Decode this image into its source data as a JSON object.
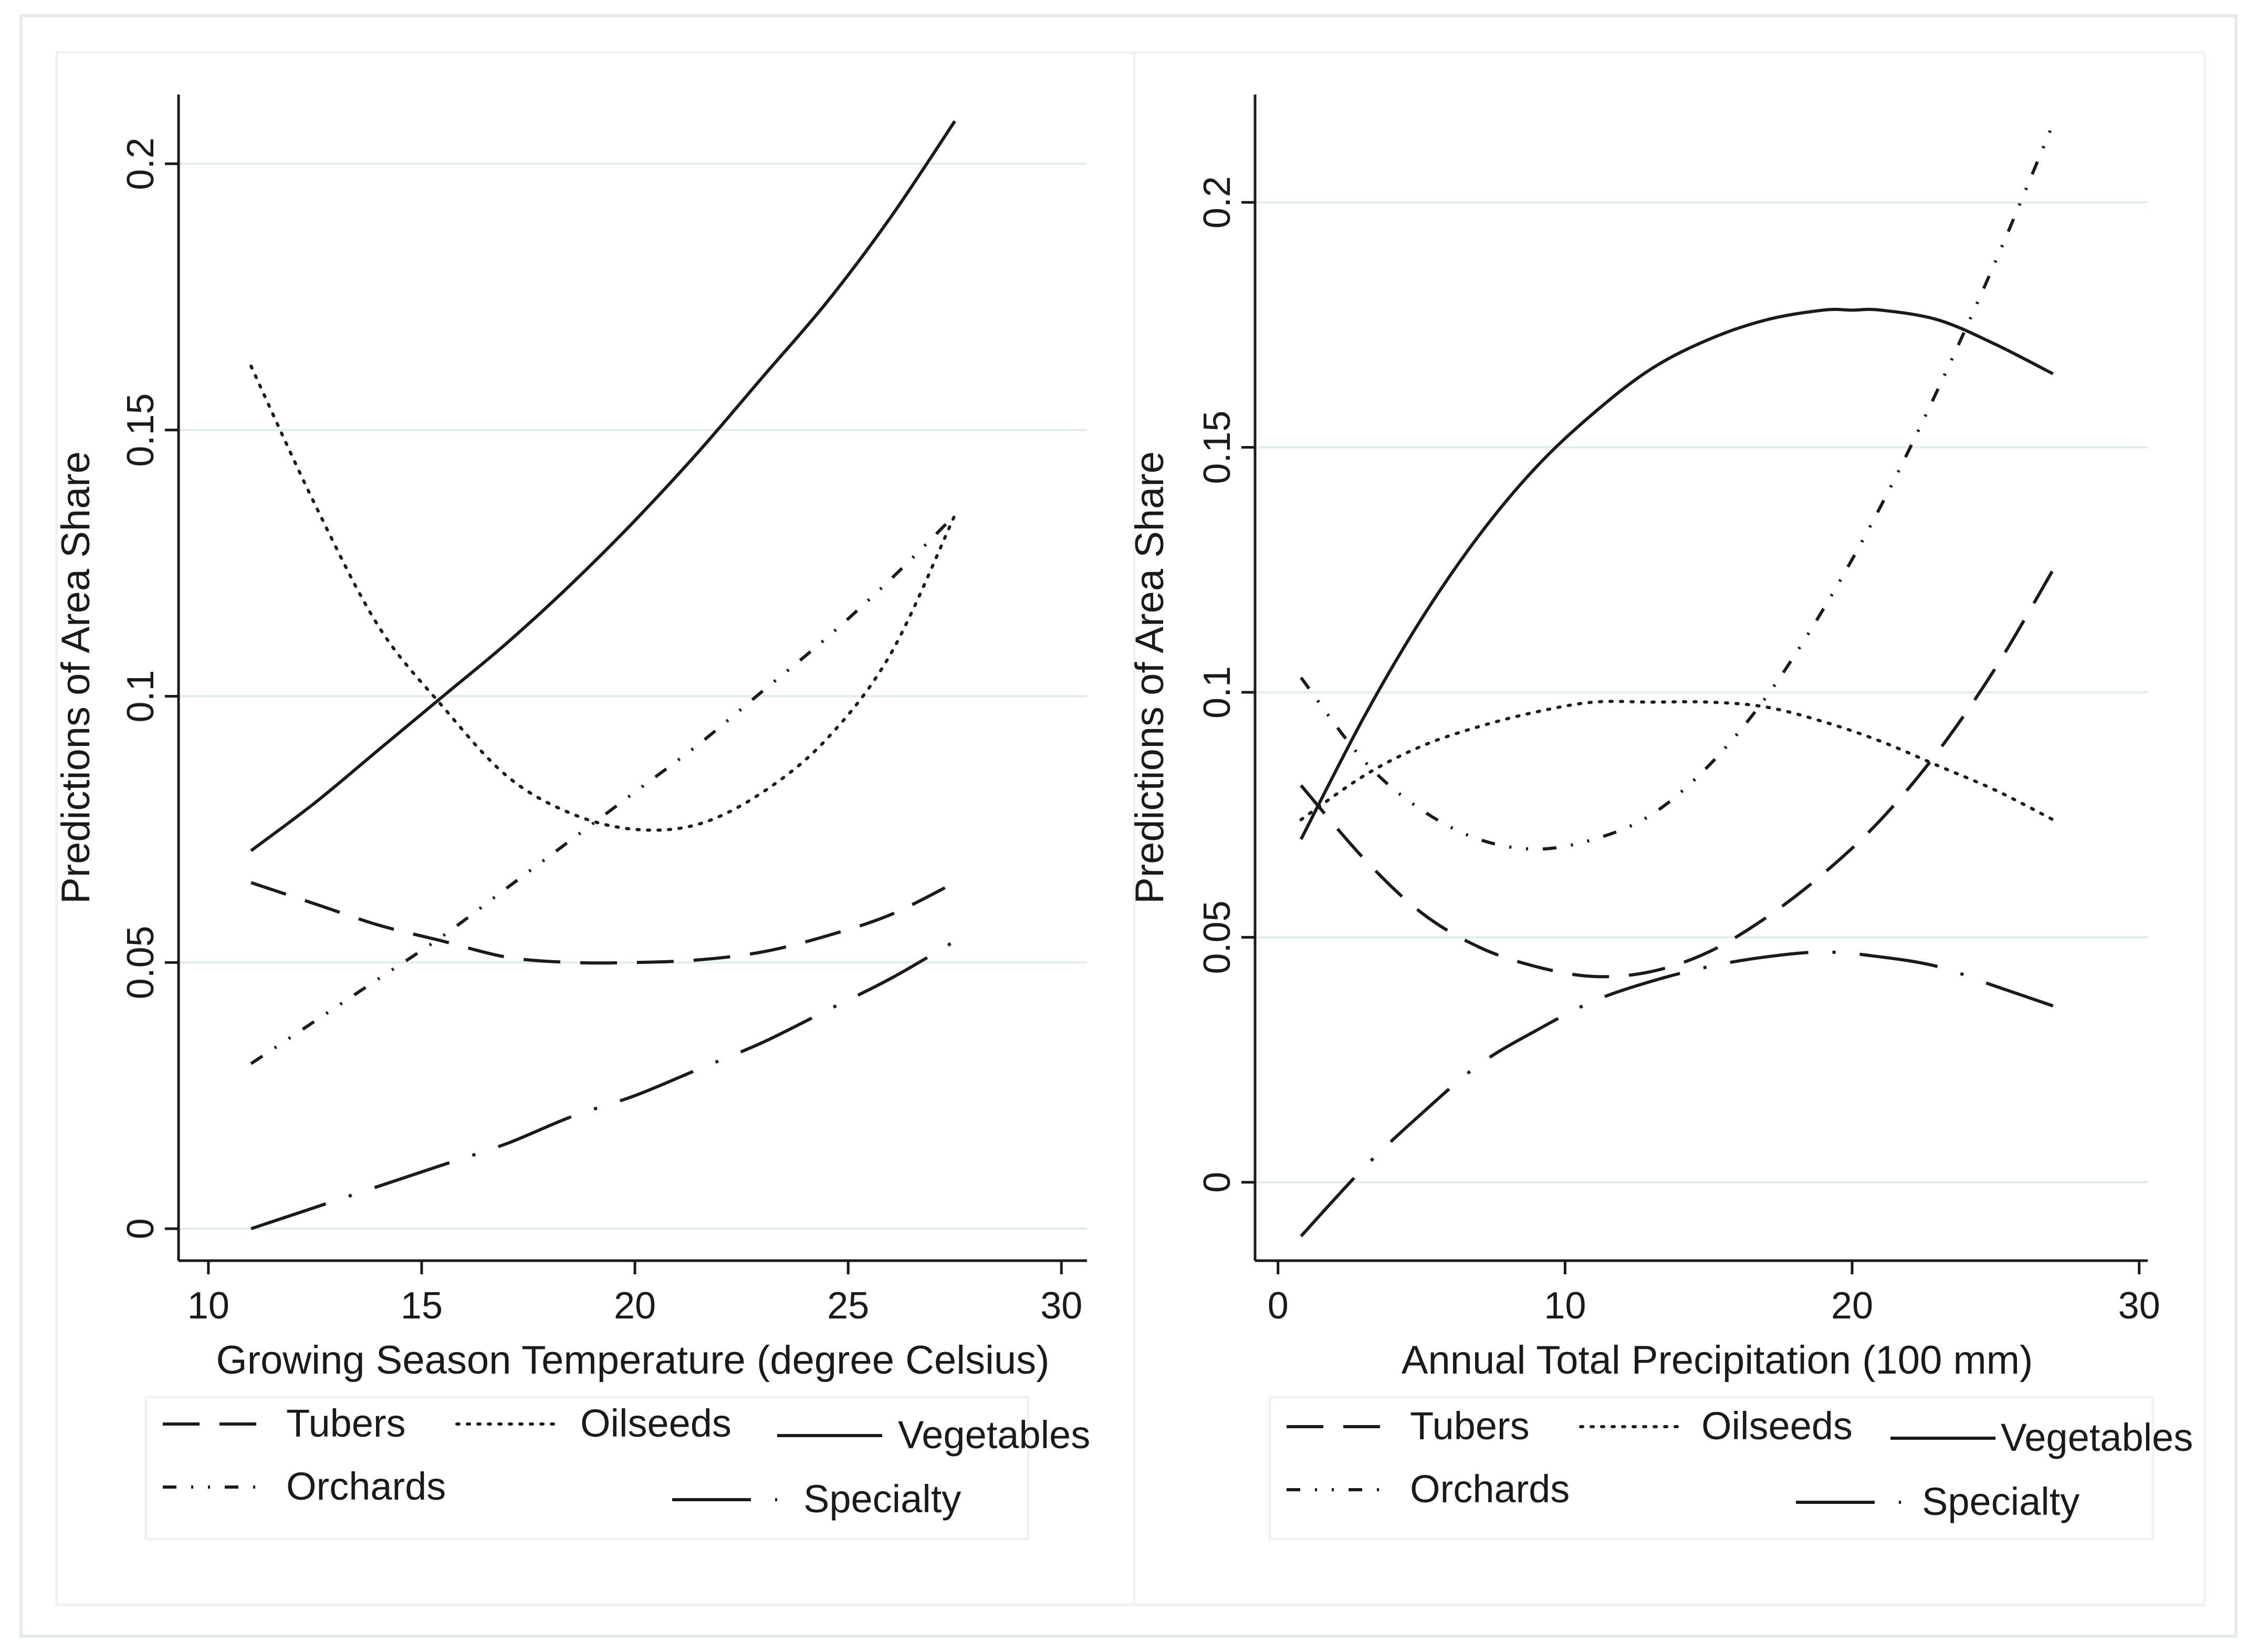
{
  "chart_data": [
    {
      "type": "line",
      "title": "",
      "xlabel": "Growing Season Temperature (degree Celsius)",
      "ylabel": "Predictions of Area Share",
      "xlim": [
        9.3,
        30.6
      ],
      "ylim": [
        -0.006,
        0.213
      ],
      "xticks": [
        10,
        15,
        20,
        25,
        30
      ],
      "xtick_labels": [
        "10",
        "15",
        "20",
        "25",
        "30"
      ],
      "yticks": [
        0,
        0.05,
        0.1,
        0.15,
        0.2
      ],
      "ytick_labels": [
        "0",
        "0.05",
        "0.1",
        "0.15",
        "0.2"
      ],
      "grid": true,
      "legend_position": "bottom",
      "series": [
        {
          "name": "Tubers",
          "style": "dashed",
          "x": [
            11,
            12.5,
            14,
            15.5,
            17,
            18.5,
            20,
            21.5,
            23,
            24.5,
            26,
            27.5
          ],
          "y": [
            0.065,
            0.061,
            0.057,
            0.054,
            0.051,
            0.05,
            0.05,
            0.0505,
            0.052,
            0.055,
            0.059,
            0.065
          ]
        },
        {
          "name": "Oilseeds",
          "style": "dotted",
          "x": [
            11,
            12.5,
            14,
            15.5,
            17,
            18.5,
            20,
            21.5,
            23,
            24.5,
            26,
            27.5
          ],
          "y": [
            0.162,
            0.136,
            0.113,
            0.098,
            0.085,
            0.078,
            0.075,
            0.076,
            0.082,
            0.092,
            0.108,
            0.134
          ]
        },
        {
          "name": "Vegetables",
          "style": "solid",
          "x": [
            11,
            12.5,
            14,
            15.5,
            17,
            18.5,
            20,
            21.5,
            23,
            24.5,
            26,
            27.5
          ],
          "y": [
            0.071,
            0.08,
            0.09,
            0.1,
            0.11,
            0.121,
            0.133,
            0.146,
            0.16,
            0.174,
            0.19,
            0.208
          ]
        },
        {
          "name": "Orchards",
          "style": "dash-dot-dot",
          "x": [
            11,
            12.5,
            14,
            15.5,
            17,
            18.5,
            20,
            21.5,
            23,
            24.5,
            26,
            27.5
          ],
          "y": [
            0.031,
            0.039,
            0.047,
            0.055,
            0.064,
            0.073,
            0.082,
            0.091,
            0.101,
            0.111,
            0.122,
            0.134
          ]
        },
        {
          "name": "Specialty",
          "style": "long-dash-dot",
          "x": [
            11,
            12.5,
            14,
            15.5,
            17,
            18.5,
            20,
            21.5,
            23,
            24.5,
            26,
            27.5
          ],
          "y": [
            0.0,
            0.004,
            0.008,
            0.012,
            0.016,
            0.021,
            0.025,
            0.03,
            0.035,
            0.041,
            0.047,
            0.054
          ]
        }
      ],
      "legend": {
        "row1": [
          "Tubers",
          "Oilseeds",
          "Vegetables"
        ],
        "row2": [
          "Orchards",
          "Specialty"
        ]
      }
    },
    {
      "type": "line",
      "title": "",
      "xlabel": "Annual Total Precipitation (100 mm)",
      "ylabel": "Predictions of Area Share",
      "xlim": [
        -0.8,
        30.3
      ],
      "ylim": [
        -0.016,
        0.222
      ],
      "xticks": [
        0,
        10,
        20,
        30
      ],
      "xtick_labels": [
        "0",
        "10",
        "20",
        "30"
      ],
      "yticks": [
        0,
        0.05,
        0.1,
        0.15,
        0.2
      ],
      "ytick_labels": [
        "0",
        "0.05",
        "0.1",
        "0.15",
        "0.2"
      ],
      "grid": true,
      "legend_position": "bottom",
      "series": [
        {
          "name": "Tubers",
          "style": "dashed",
          "x": [
            0.8,
            3,
            5,
            7,
            9,
            11,
            13,
            15,
            17,
            19,
            21,
            23,
            25,
            27
          ],
          "y": [
            0.081,
            0.066,
            0.055,
            0.048,
            0.044,
            0.042,
            0.043,
            0.047,
            0.054,
            0.063,
            0.074,
            0.088,
            0.105,
            0.125
          ]
        },
        {
          "name": "Oilseeds",
          "style": "dotted",
          "x": [
            0.8,
            3,
            5,
            7,
            9,
            11,
            13,
            15,
            17,
            19,
            21,
            23,
            25,
            27
          ],
          "y": [
            0.074,
            0.083,
            0.089,
            0.093,
            0.096,
            0.098,
            0.098,
            0.098,
            0.097,
            0.094,
            0.09,
            0.085,
            0.08,
            0.074
          ]
        },
        {
          "name": "Vegetables",
          "style": "solid",
          "x": [
            0.8,
            3,
            5,
            7,
            9,
            11,
            13,
            15,
            17,
            19,
            20,
            21,
            23,
            25,
            27
          ],
          "y": [
            0.07,
            0.095,
            0.115,
            0.132,
            0.146,
            0.157,
            0.166,
            0.172,
            0.176,
            0.178,
            0.178,
            0.178,
            0.176,
            0.171,
            0.165
          ]
        },
        {
          "name": "Orchards",
          "style": "dash-dot-dot",
          "x": [
            0.8,
            3,
            5,
            7,
            9,
            11,
            13,
            15,
            17,
            19,
            21,
            23,
            25,
            27
          ],
          "y": [
            0.103,
            0.086,
            0.076,
            0.07,
            0.068,
            0.07,
            0.075,
            0.085,
            0.099,
            0.117,
            0.138,
            0.162,
            0.188,
            0.216
          ]
        },
        {
          "name": "Specialty",
          "style": "long-dash-dot",
          "x": [
            0.8,
            3,
            5,
            7,
            9,
            11,
            13,
            15,
            17,
            19,
            21,
            23,
            25,
            27
          ],
          "y": [
            -0.011,
            0.003,
            0.014,
            0.024,
            0.031,
            0.037,
            0.041,
            0.044,
            0.046,
            0.047,
            0.046,
            0.044,
            0.04,
            0.036
          ]
        }
      ],
      "legend": {
        "row1": [
          "Tubers",
          "Oilseeds",
          "Vegetables"
        ],
        "row2": [
          "Orchards",
          "Specialty"
        ]
      }
    }
  ]
}
